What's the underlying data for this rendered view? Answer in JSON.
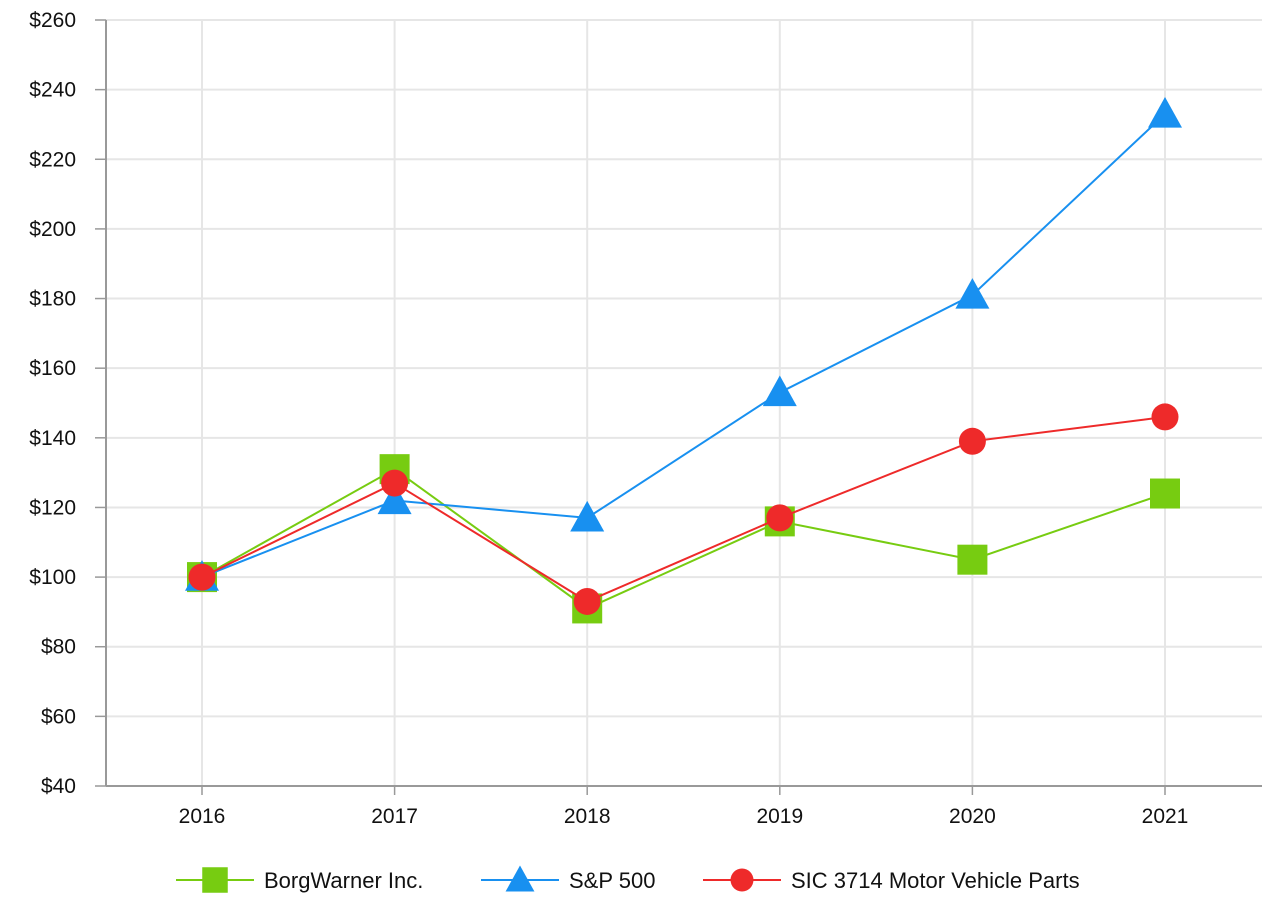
{
  "chart_data": {
    "type": "line",
    "title": "",
    "xlabel": "",
    "ylabel": "",
    "categories": [
      "2016",
      "2017",
      "2018",
      "2019",
      "2020",
      "2021"
    ],
    "ylim": [
      40,
      260
    ],
    "yticks": [
      40,
      60,
      80,
      100,
      120,
      140,
      160,
      180,
      200,
      220,
      240,
      260
    ],
    "ytick_labels": [
      "$40",
      "$60",
      "$80",
      "$100",
      "$120",
      "$140",
      "$160",
      "$180",
      "$200",
      "$220",
      "$240",
      "$260"
    ],
    "grid": true,
    "legend_position": "bottom",
    "series": [
      {
        "name": "BorgWarner Inc.",
        "marker": "square",
        "color": "#77cc11",
        "values": [
          100,
          131,
          91,
          116,
          105,
          124
        ]
      },
      {
        "name": "S&P 500",
        "marker": "triangle",
        "color": "#1890f0",
        "values": [
          100,
          122,
          117,
          153,
          181,
          233
        ]
      },
      {
        "name": "SIC 3714 Motor Vehicle Parts",
        "marker": "circle",
        "color": "#ee2a2a",
        "values": [
          100,
          127,
          93,
          117,
          139,
          146
        ]
      }
    ]
  }
}
